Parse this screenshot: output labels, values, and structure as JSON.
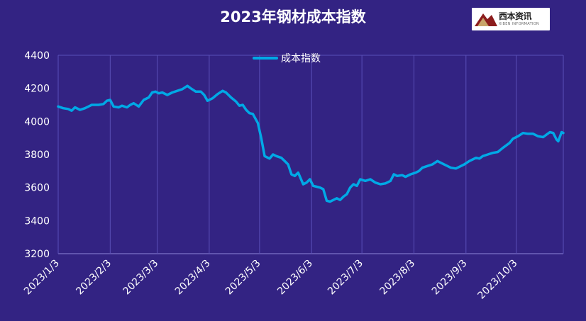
{
  "title": "2023年钢材成本指数",
  "logo": {
    "brand": "西本资讯",
    "tagline": "XIBEN INFORMATION"
  },
  "colors": {
    "background": "#332383",
    "line": "#00a9e6",
    "grid": "#5a4fb8",
    "text": "#ffffff"
  },
  "chart_data": {
    "type": "line",
    "title": "2023年钢材成本指数",
    "legend": {
      "placement": "top-center",
      "entries": [
        "成本指数"
      ]
    },
    "xlabel": "",
    "ylabel": "",
    "ylim": [
      3200,
      4400
    ],
    "yticks": [
      3200,
      3400,
      3600,
      3800,
      4000,
      4200,
      4400
    ],
    "xlim": [
      "2023-01-03",
      "2023-10-31"
    ],
    "xticks": [
      "2023/1/3",
      "2023/2/3",
      "2023/3/3",
      "2023/4/3",
      "2023/5/3",
      "2023/6/3",
      "2023/7/3",
      "2023/8/3",
      "2023/9/3",
      "2023/10/3"
    ],
    "xtick_dates": [
      "2023-01-03",
      "2023-02-03",
      "2023-03-03",
      "2023-04-03",
      "2023-05-03",
      "2023-06-03",
      "2023-07-03",
      "2023-08-03",
      "2023-09-03",
      "2023-10-03"
    ],
    "grid": {
      "vertical": true,
      "horizontal": false
    },
    "series": [
      {
        "name": "成本指数",
        "points": [
          [
            "2023-01-03",
            4090
          ],
          [
            "2023-01-06",
            4080
          ],
          [
            "2023-01-09",
            4075
          ],
          [
            "2023-01-11",
            4065
          ],
          [
            "2023-01-13",
            4085
          ],
          [
            "2023-01-16",
            4070
          ],
          [
            "2023-01-19",
            4080
          ],
          [
            "2023-01-23",
            4100
          ],
          [
            "2023-01-27",
            4100
          ],
          [
            "2023-01-30",
            4105
          ],
          [
            "2023-02-01",
            4125
          ],
          [
            "2023-02-03",
            4130
          ],
          [
            "2023-02-05",
            4090
          ],
          [
            "2023-02-08",
            4085
          ],
          [
            "2023-02-10",
            4095
          ],
          [
            "2023-02-13",
            4085
          ],
          [
            "2023-02-15",
            4100
          ],
          [
            "2023-02-17",
            4110
          ],
          [
            "2023-02-20",
            4090
          ],
          [
            "2023-02-23",
            4130
          ],
          [
            "2023-02-26",
            4145
          ],
          [
            "2023-02-28",
            4175
          ],
          [
            "2023-03-02",
            4180
          ],
          [
            "2023-03-04",
            4170
          ],
          [
            "2023-03-06",
            4175
          ],
          [
            "2023-03-09",
            4160
          ],
          [
            "2023-03-12",
            4175
          ],
          [
            "2023-03-15",
            4185
          ],
          [
            "2023-03-18",
            4195
          ],
          [
            "2023-03-21",
            4215
          ],
          [
            "2023-03-23",
            4200
          ],
          [
            "2023-03-26",
            4180
          ],
          [
            "2023-03-29",
            4180
          ],
          [
            "2023-03-31",
            4160
          ],
          [
            "2023-04-02",
            4125
          ],
          [
            "2023-04-05",
            4140
          ],
          [
            "2023-04-08",
            4165
          ],
          [
            "2023-04-11",
            4185
          ],
          [
            "2023-04-13",
            4175
          ],
          [
            "2023-04-16",
            4145
          ],
          [
            "2023-04-19",
            4120
          ],
          [
            "2023-04-21",
            4095
          ],
          [
            "2023-04-23",
            4100
          ],
          [
            "2023-04-25",
            4070
          ],
          [
            "2023-04-27",
            4050
          ],
          [
            "2023-04-29",
            4045
          ],
          [
            "2023-05-02",
            3990
          ],
          [
            "2023-05-04",
            3900
          ],
          [
            "2023-05-06",
            3790
          ],
          [
            "2023-05-09",
            3775
          ],
          [
            "2023-05-11",
            3800
          ],
          [
            "2023-05-13",
            3790
          ],
          [
            "2023-05-16",
            3780
          ],
          [
            "2023-05-18",
            3760
          ],
          [
            "2023-05-20",
            3740
          ],
          [
            "2023-05-22",
            3680
          ],
          [
            "2023-05-24",
            3670
          ],
          [
            "2023-05-26",
            3690
          ],
          [
            "2023-05-29",
            3620
          ],
          [
            "2023-05-31",
            3630
          ],
          [
            "2023-06-02",
            3650
          ],
          [
            "2023-06-04",
            3610
          ],
          [
            "2023-06-06",
            3605
          ],
          [
            "2023-06-08",
            3600
          ],
          [
            "2023-06-10",
            3590
          ],
          [
            "2023-06-12",
            3520
          ],
          [
            "2023-06-14",
            3515
          ],
          [
            "2023-06-16",
            3525
          ],
          [
            "2023-06-18",
            3535
          ],
          [
            "2023-06-20",
            3525
          ],
          [
            "2023-06-22",
            3545
          ],
          [
            "2023-06-24",
            3560
          ],
          [
            "2023-06-26",
            3600
          ],
          [
            "2023-06-28",
            3620
          ],
          [
            "2023-06-30",
            3610
          ],
          [
            "2023-07-02",
            3650
          ],
          [
            "2023-07-05",
            3640
          ],
          [
            "2023-07-08",
            3650
          ],
          [
            "2023-07-11",
            3630
          ],
          [
            "2023-07-14",
            3620
          ],
          [
            "2023-07-17",
            3625
          ],
          [
            "2023-07-20",
            3640
          ],
          [
            "2023-07-22",
            3680
          ],
          [
            "2023-07-24",
            3670
          ],
          [
            "2023-07-27",
            3675
          ],
          [
            "2023-07-29",
            3665
          ],
          [
            "2023-08-01",
            3680
          ],
          [
            "2023-08-04",
            3690
          ],
          [
            "2023-08-06",
            3700
          ],
          [
            "2023-08-08",
            3720
          ],
          [
            "2023-08-11",
            3730
          ],
          [
            "2023-08-14",
            3740
          ],
          [
            "2023-08-17",
            3760
          ],
          [
            "2023-08-19",
            3750
          ],
          [
            "2023-08-22",
            3735
          ],
          [
            "2023-08-25",
            3720
          ],
          [
            "2023-08-28",
            3715
          ],
          [
            "2023-08-31",
            3730
          ],
          [
            "2023-09-02",
            3740
          ],
          [
            "2023-09-05",
            3760
          ],
          [
            "2023-09-07",
            3770
          ],
          [
            "2023-09-09",
            3780
          ],
          [
            "2023-09-11",
            3775
          ],
          [
            "2023-09-13",
            3790
          ],
          [
            "2023-09-16",
            3800
          ],
          [
            "2023-09-19",
            3810
          ],
          [
            "2023-09-22",
            3815
          ],
          [
            "2023-09-25",
            3840
          ],
          [
            "2023-09-27",
            3855
          ],
          [
            "2023-09-29",
            3870
          ],
          [
            "2023-10-01",
            3895
          ],
          [
            "2023-10-04",
            3910
          ],
          [
            "2023-10-07",
            3930
          ],
          [
            "2023-10-10",
            3925
          ],
          [
            "2023-10-13",
            3925
          ],
          [
            "2023-10-16",
            3910
          ],
          [
            "2023-10-19",
            3905
          ],
          [
            "2023-10-21",
            3920
          ],
          [
            "2023-10-23",
            3935
          ],
          [
            "2023-10-25",
            3930
          ],
          [
            "2023-10-27",
            3890
          ],
          [
            "2023-10-28",
            3880
          ],
          [
            "2023-10-30",
            3935
          ],
          [
            "2023-10-31",
            3930
          ]
        ]
      }
    ]
  }
}
